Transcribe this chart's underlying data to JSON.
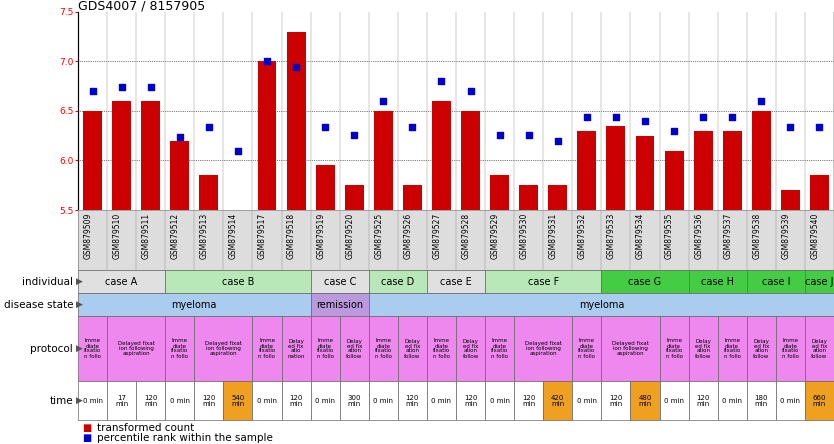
{
  "title": "GDS4007 / 8157905",
  "samples": [
    "GSM879509",
    "GSM879510",
    "GSM879511",
    "GSM879512",
    "GSM879513",
    "GSM879514",
    "GSM879517",
    "GSM879518",
    "GSM879519",
    "GSM879520",
    "GSM879525",
    "GSM879526",
    "GSM879527",
    "GSM879528",
    "GSM879529",
    "GSM879530",
    "GSM879531",
    "GSM879532",
    "GSM879533",
    "GSM879534",
    "GSM879535",
    "GSM879536",
    "GSM879537",
    "GSM879538",
    "GSM879539",
    "GSM879540"
  ],
  "transformed_count": [
    6.5,
    6.6,
    6.6,
    6.2,
    5.85,
    5.5,
    7.0,
    7.3,
    5.95,
    5.75,
    6.5,
    5.75,
    6.6,
    6.5,
    5.85,
    5.75,
    5.75,
    6.3,
    6.35,
    6.25,
    6.1,
    6.3,
    6.3,
    6.5,
    5.7,
    5.85
  ],
  "percentile_rank": [
    60,
    62,
    62,
    37,
    42,
    30,
    75,
    72,
    42,
    38,
    55,
    42,
    65,
    60,
    38,
    38,
    35,
    47,
    47,
    45,
    40,
    47,
    47,
    55,
    42,
    42
  ],
  "ylim_left": [
    5.5,
    7.5
  ],
  "ylim_right": [
    0,
    100
  ],
  "yticks_left": [
    5.5,
    6.0,
    6.5,
    7.0,
    7.5
  ],
  "yticks_right": [
    0,
    25,
    50,
    75,
    100
  ],
  "individual_cases": [
    {
      "label": "case A",
      "start": 0,
      "end": 3,
      "color": "#e0e0e0"
    },
    {
      "label": "case B",
      "start": 3,
      "end": 8,
      "color": "#b8e8b8"
    },
    {
      "label": "case C",
      "start": 8,
      "end": 10,
      "color": "#e0e0e0"
    },
    {
      "label": "case D",
      "start": 10,
      "end": 12,
      "color": "#b8e8b8"
    },
    {
      "label": "case E",
      "start": 12,
      "end": 14,
      "color": "#e0e0e0"
    },
    {
      "label": "case F",
      "start": 14,
      "end": 18,
      "color": "#b8e8b8"
    },
    {
      "label": "case G",
      "start": 18,
      "end": 21,
      "color": "#44cc44"
    },
    {
      "label": "case H",
      "start": 21,
      "end": 23,
      "color": "#44cc44"
    },
    {
      "label": "case I",
      "start": 23,
      "end": 25,
      "color": "#44cc44"
    },
    {
      "label": "case J",
      "start": 25,
      "end": 26,
      "color": "#44cc44"
    }
  ],
  "disease_states": [
    {
      "label": "myeloma",
      "start": 0,
      "end": 8,
      "color": "#aaccee"
    },
    {
      "label": "remission",
      "start": 8,
      "end": 10,
      "color": "#bb99dd"
    },
    {
      "label": "myeloma",
      "start": 10,
      "end": 26,
      "color": "#aaccee"
    }
  ],
  "protocols": [
    {
      "label": "Imme\ndiate\nfixatio\nn follo",
      "start": 0,
      "end": 1,
      "color": "#ee88ee"
    },
    {
      "label": "Delayed fixat\nion following\naspiration",
      "start": 1,
      "end": 3,
      "color": "#ee88ee"
    },
    {
      "label": "Imme\ndiate\nfixatio\nn follo",
      "start": 3,
      "end": 4,
      "color": "#ee88ee"
    },
    {
      "label": "Delayed fixat\nion following\naspiration",
      "start": 4,
      "end": 6,
      "color": "#ee88ee"
    },
    {
      "label": "Imme\ndiate\nfixatio\nn follo",
      "start": 6,
      "end": 7,
      "color": "#ee88ee"
    },
    {
      "label": "Delay\ned fix\natio\nnation",
      "start": 7,
      "end": 8,
      "color": "#ee88ee"
    },
    {
      "label": "Imme\ndiate\nfixatio\nn follo",
      "start": 8,
      "end": 9,
      "color": "#ee88ee"
    },
    {
      "label": "Delay\ned fix\nation\nfollow",
      "start": 9,
      "end": 10,
      "color": "#ee88ee"
    },
    {
      "label": "Imme\ndiate\nfixatio\nn follo",
      "start": 10,
      "end": 11,
      "color": "#ee88ee"
    },
    {
      "label": "Delay\ned fix\nation\nfollow",
      "start": 11,
      "end": 12,
      "color": "#ee88ee"
    },
    {
      "label": "Imme\ndiate\nfixatio\nn follo",
      "start": 12,
      "end": 13,
      "color": "#ee88ee"
    },
    {
      "label": "Delay\ned fix\nation\nfollow",
      "start": 13,
      "end": 14,
      "color": "#ee88ee"
    },
    {
      "label": "Imme\ndiate\nfixatio\nn follo",
      "start": 14,
      "end": 15,
      "color": "#ee88ee"
    },
    {
      "label": "Delayed fixat\nion following\naspiration",
      "start": 15,
      "end": 17,
      "color": "#ee88ee"
    },
    {
      "label": "Imme\ndiate\nfixatio\nn follo",
      "start": 17,
      "end": 18,
      "color": "#ee88ee"
    },
    {
      "label": "Delayed fixat\nion following\naspiration",
      "start": 18,
      "end": 20,
      "color": "#ee88ee"
    },
    {
      "label": "Imme\ndiate\nfixatio\nn follo",
      "start": 20,
      "end": 21,
      "color": "#ee88ee"
    },
    {
      "label": "Delay\ned fix\nation\nfollow",
      "start": 21,
      "end": 22,
      "color": "#ee88ee"
    },
    {
      "label": "Imme\ndiate\nfixatio\nn follo",
      "start": 22,
      "end": 23,
      "color": "#ee88ee"
    },
    {
      "label": "Delay\ned fix\nation\nfollow",
      "start": 23,
      "end": 24,
      "color": "#ee88ee"
    },
    {
      "label": "Imme\ndiate\nfixatio\nn follo",
      "start": 24,
      "end": 25,
      "color": "#ee88ee"
    },
    {
      "label": "Delay\ned fix\nation\nfollow",
      "start": 25,
      "end": 26,
      "color": "#ee88ee"
    }
  ],
  "times": [
    {
      "label": "0 min",
      "start": 0,
      "end": 1,
      "color": "#ffffff"
    },
    {
      "label": "17\nmin",
      "start": 1,
      "end": 2,
      "color": "#ffffff"
    },
    {
      "label": "120\nmin",
      "start": 2,
      "end": 3,
      "color": "#ffffff"
    },
    {
      "label": "0 min",
      "start": 3,
      "end": 4,
      "color": "#ffffff"
    },
    {
      "label": "120\nmin",
      "start": 4,
      "end": 5,
      "color": "#ffffff"
    },
    {
      "label": "540\nmin",
      "start": 5,
      "end": 6,
      "color": "#f0a020"
    },
    {
      "label": "0 min",
      "start": 6,
      "end": 7,
      "color": "#ffffff"
    },
    {
      "label": "120\nmin",
      "start": 7,
      "end": 8,
      "color": "#ffffff"
    },
    {
      "label": "0 min",
      "start": 8,
      "end": 9,
      "color": "#ffffff"
    },
    {
      "label": "300\nmin",
      "start": 9,
      "end": 10,
      "color": "#ffffff"
    },
    {
      "label": "0 min",
      "start": 10,
      "end": 11,
      "color": "#ffffff"
    },
    {
      "label": "120\nmin",
      "start": 11,
      "end": 12,
      "color": "#ffffff"
    },
    {
      "label": "0 min",
      "start": 12,
      "end": 13,
      "color": "#ffffff"
    },
    {
      "label": "120\nmin",
      "start": 13,
      "end": 14,
      "color": "#ffffff"
    },
    {
      "label": "0 min",
      "start": 14,
      "end": 15,
      "color": "#ffffff"
    },
    {
      "label": "120\nmin",
      "start": 15,
      "end": 16,
      "color": "#ffffff"
    },
    {
      "label": "420\nmin",
      "start": 16,
      "end": 17,
      "color": "#f0a020"
    },
    {
      "label": "0 min",
      "start": 17,
      "end": 18,
      "color": "#ffffff"
    },
    {
      "label": "120\nmin",
      "start": 18,
      "end": 19,
      "color": "#ffffff"
    },
    {
      "label": "480\nmin",
      "start": 19,
      "end": 20,
      "color": "#f0a020"
    },
    {
      "label": "0 min",
      "start": 20,
      "end": 21,
      "color": "#ffffff"
    },
    {
      "label": "120\nmin",
      "start": 21,
      "end": 22,
      "color": "#ffffff"
    },
    {
      "label": "0 min",
      "start": 22,
      "end": 23,
      "color": "#ffffff"
    },
    {
      "label": "180\nmin",
      "start": 23,
      "end": 24,
      "color": "#ffffff"
    },
    {
      "label": "0 min",
      "start": 24,
      "end": 25,
      "color": "#ffffff"
    },
    {
      "label": "660\nmin",
      "start": 25,
      "end": 26,
      "color": "#f0a020"
    }
  ],
  "bar_color": "#cc0000",
  "dot_color": "#0000cc",
  "background_color": "#ffffff",
  "row_label_fontsize": 7.5,
  "sample_fontsize": 5.5,
  "cell_fontsize": 5.5,
  "time_fontsize": 5.5,
  "legend_fontsize": 7.5,
  "title_fontsize": 9
}
